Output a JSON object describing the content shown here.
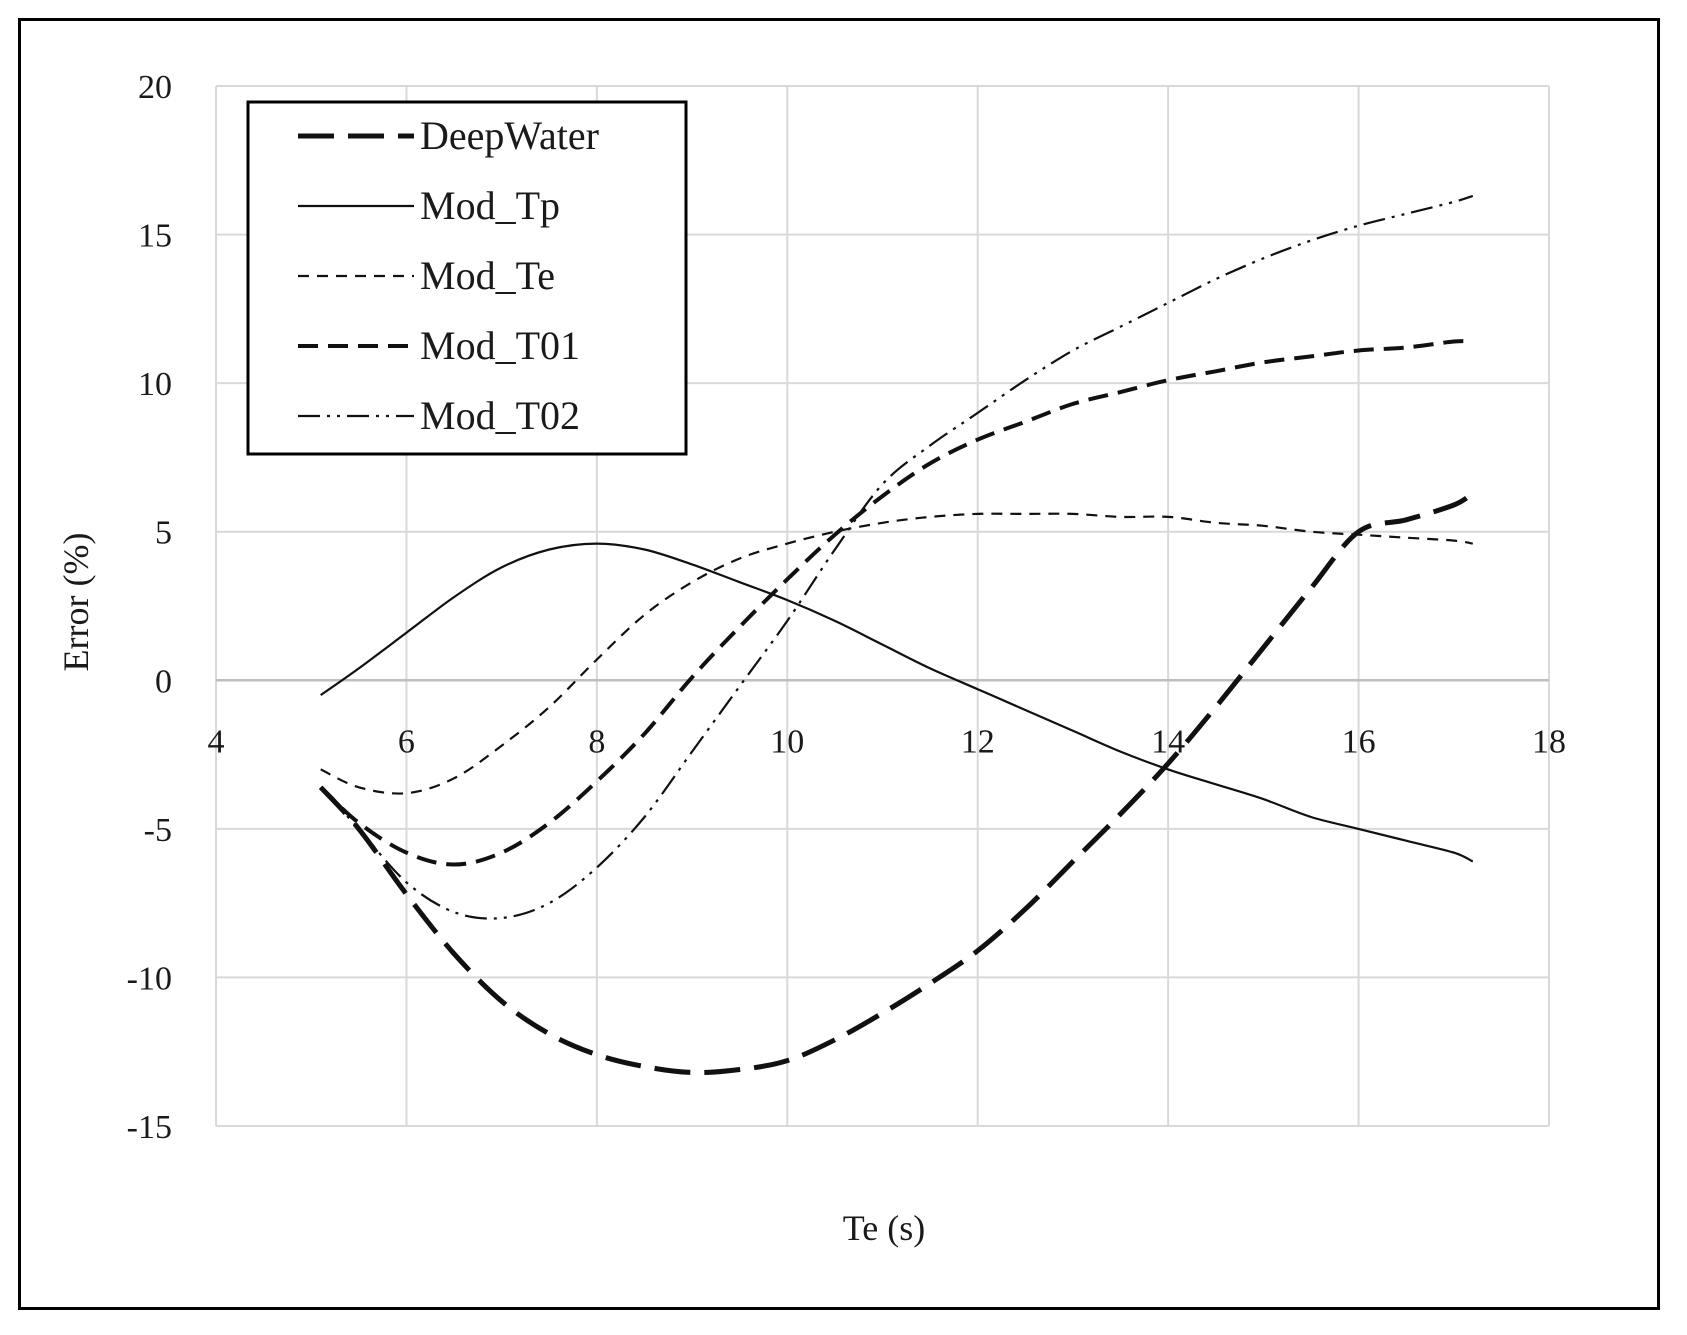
{
  "chart_data": {
    "type": "line",
    "title": "",
    "xlabel": "Te (s)",
    "ylabel": "Error (%)",
    "xlim": [
      4,
      18
    ],
    "ylim": [
      -15,
      20
    ],
    "xticks": [
      "4",
      "6",
      "8",
      "10",
      "12",
      "14",
      "16",
      "18"
    ],
    "yticks": [
      "20",
      "15",
      "10",
      "5",
      "0",
      "-5",
      "-10",
      "-15"
    ],
    "grid": true,
    "legend_position": "top-left",
    "series": [
      {
        "name": "DeepWater",
        "style": "long-dash",
        "stroke_width": 5,
        "x": [
          5.1,
          5.5,
          6.0,
          6.5,
          7.0,
          7.5,
          8.0,
          8.5,
          9.0,
          9.5,
          10.0,
          10.5,
          11.0,
          11.5,
          12.0,
          12.5,
          13.0,
          13.5,
          14.0,
          14.5,
          15.0,
          15.5,
          16.0,
          16.5,
          17.0,
          17.2
        ],
        "y": [
          -3.6,
          -5.0,
          -7.2,
          -9.2,
          -10.8,
          -11.9,
          -12.6,
          -13.0,
          -13.2,
          -13.1,
          -12.8,
          -12.1,
          -11.2,
          -10.2,
          -9.1,
          -7.7,
          -6.1,
          -4.5,
          -2.8,
          -0.9,
          1.1,
          3.1,
          5.0,
          5.4,
          5.9,
          6.3
        ]
      },
      {
        "name": "Mod_Tp",
        "style": "solid",
        "stroke_width": 2.2,
        "x": [
          5.1,
          5.5,
          6.0,
          6.5,
          7.0,
          7.5,
          8.0,
          8.5,
          9.0,
          9.5,
          10.0,
          10.5,
          11.0,
          11.5,
          12.0,
          12.5,
          13.0,
          13.5,
          14.0,
          14.5,
          15.0,
          15.5,
          16.0,
          16.5,
          17.0,
          17.2
        ],
        "y": [
          -0.5,
          0.4,
          1.6,
          2.8,
          3.8,
          4.4,
          4.6,
          4.4,
          3.9,
          3.3,
          2.7,
          2.0,
          1.2,
          0.4,
          -0.3,
          -1.0,
          -1.7,
          -2.4,
          -3.0,
          -3.5,
          -4.0,
          -4.6,
          -5.0,
          -5.4,
          -5.8,
          -6.1
        ]
      },
      {
        "name": "Mod_Te",
        "style": "short-dash",
        "stroke_width": 2.2,
        "x": [
          5.1,
          5.5,
          6.0,
          6.5,
          7.0,
          7.5,
          8.0,
          8.5,
          9.0,
          9.5,
          10.0,
          10.5,
          11.0,
          11.5,
          12.0,
          12.5,
          13.0,
          13.5,
          14.0,
          14.5,
          15.0,
          15.5,
          16.0,
          16.5,
          17.0,
          17.2
        ],
        "y": [
          -3.0,
          -3.6,
          -3.8,
          -3.3,
          -2.2,
          -0.9,
          0.7,
          2.2,
          3.3,
          4.1,
          4.6,
          5.0,
          5.3,
          5.5,
          5.6,
          5.6,
          5.6,
          5.5,
          5.5,
          5.3,
          5.2,
          5.0,
          4.9,
          4.8,
          4.7,
          4.6
        ]
      },
      {
        "name": "Mod_T01",
        "style": "medium-dash",
        "stroke_width": 4,
        "x": [
          5.1,
          5.5,
          6.0,
          6.5,
          7.0,
          7.5,
          8.0,
          8.5,
          9.0,
          9.5,
          10.0,
          10.5,
          11.0,
          11.5,
          12.0,
          12.5,
          13.0,
          13.5,
          14.0,
          14.5,
          15.0,
          15.5,
          16.0,
          16.5,
          17.0,
          17.2
        ],
        "y": [
          -3.6,
          -4.8,
          -5.8,
          -6.2,
          -5.8,
          -4.8,
          -3.4,
          -1.8,
          0.1,
          1.8,
          3.4,
          4.9,
          6.2,
          7.3,
          8.1,
          8.7,
          9.3,
          9.7,
          10.1,
          10.4,
          10.7,
          10.9,
          11.1,
          11.2,
          11.4,
          11.4
        ]
      },
      {
        "name": "Mod_T02",
        "style": "dash-dot-dot",
        "stroke_width": 2.2,
        "x": [
          5.1,
          5.5,
          6.0,
          6.5,
          7.0,
          7.5,
          8.0,
          8.5,
          9.0,
          9.5,
          10.0,
          10.5,
          11.0,
          11.5,
          12.0,
          12.5,
          13.0,
          13.5,
          14.0,
          14.5,
          15.0,
          15.5,
          16.0,
          16.5,
          17.0,
          17.2
        ],
        "y": [
          -3.6,
          -5.0,
          -6.8,
          -7.8,
          -8.0,
          -7.5,
          -6.3,
          -4.6,
          -2.4,
          -0.2,
          2.0,
          4.4,
          6.6,
          7.9,
          9.0,
          10.1,
          11.1,
          11.9,
          12.7,
          13.5,
          14.2,
          14.8,
          15.3,
          15.7,
          16.1,
          16.3
        ]
      }
    ]
  }
}
